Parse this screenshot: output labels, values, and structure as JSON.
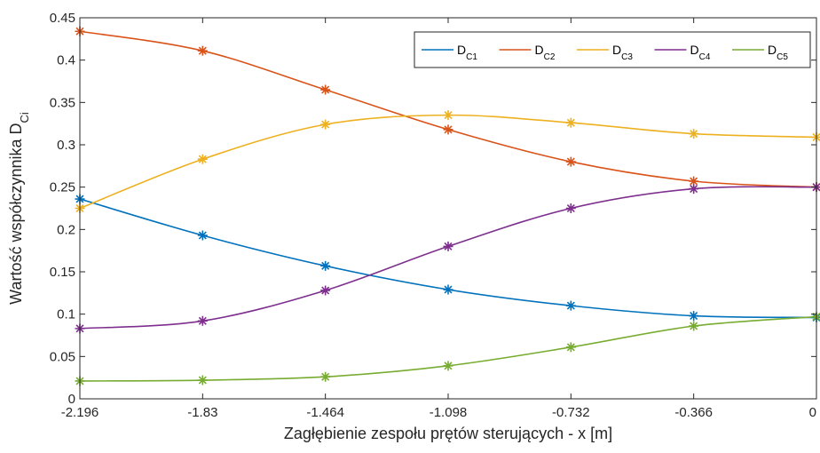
{
  "chart_data": {
    "type": "line",
    "x": [
      -2.196,
      -1.83,
      -1.464,
      -1.098,
      -0.732,
      -0.366,
      0
    ],
    "x_tick_labels": [
      "-2.196",
      "-1.83",
      "-1.464",
      "-1.098",
      "-0.732",
      "-0.366",
      "0"
    ],
    "y_ticks": [
      0,
      0.05,
      0.1,
      0.15,
      0.2,
      0.25,
      0.3,
      0.35,
      0.4,
      0.45
    ],
    "y_tick_labels": [
      "0",
      "0.05",
      "0.1",
      "0.15",
      "0.2",
      "0.25",
      "0.3",
      "0.35",
      "0.4",
      "0.45"
    ],
    "xlim": [
      -2.196,
      0
    ],
    "ylim": [
      0,
      0.45
    ],
    "xlabel": "Zagłębienie zespołu prętów sterujących - x [m]",
    "ylabel_main": "Wartość współczynnika D",
    "ylabel_sub": "Ci",
    "grid": false,
    "legend_position": "top-right",
    "marker": "asterisk",
    "series": [
      {
        "name_main": "D",
        "name_sub": "C1",
        "color": "#0072BD",
        "values": [
          0.236,
          0.193,
          0.157,
          0.129,
          0.11,
          0.098,
          0.096
        ]
      },
      {
        "name_main": "D",
        "name_sub": "C2",
        "color": "#D95319",
        "values": [
          0.434,
          0.411,
          0.365,
          0.318,
          0.28,
          0.257,
          0.25
        ]
      },
      {
        "name_main": "D",
        "name_sub": "C3",
        "color": "#EDB120",
        "values": [
          0.225,
          0.283,
          0.324,
          0.335,
          0.326,
          0.313,
          0.309
        ]
      },
      {
        "name_main": "D",
        "name_sub": "C4",
        "color": "#7E2F8E",
        "values": [
          0.083,
          0.092,
          0.128,
          0.18,
          0.225,
          0.248,
          0.25
        ]
      },
      {
        "name_main": "D",
        "name_sub": "C5",
        "color": "#77AC30",
        "values": [
          0.021,
          0.022,
          0.026,
          0.039,
          0.061,
          0.086,
          0.097
        ]
      }
    ]
  }
}
